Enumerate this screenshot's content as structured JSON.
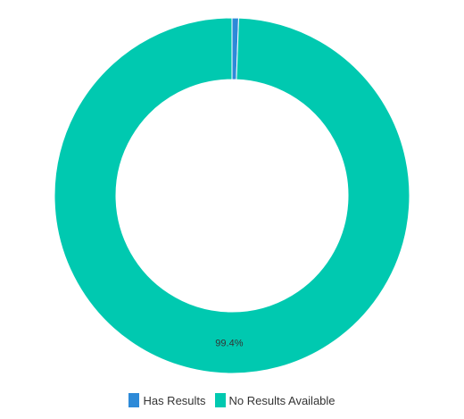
{
  "chart_data": {
    "type": "pie",
    "variant": "donut",
    "categories": [
      "Has Results",
      "No Results Available"
    ],
    "values": [
      0.6,
      99.4
    ],
    "data_labels": [
      "",
      "99.4%"
    ],
    "colors": [
      "#2d8ad8",
      "#00c9b0"
    ],
    "legend_position": "bottom-center"
  }
}
